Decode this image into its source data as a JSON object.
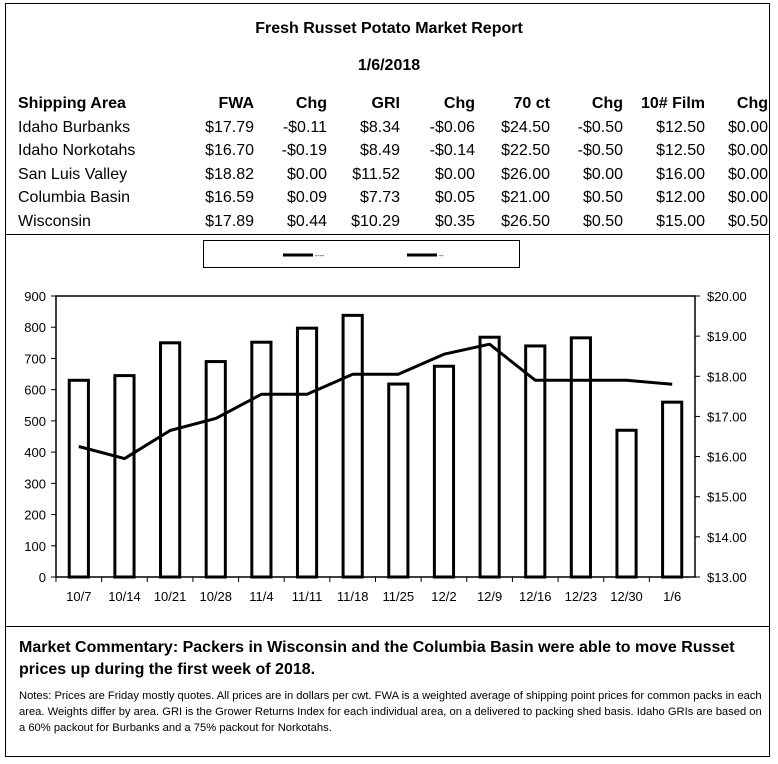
{
  "report": {
    "title": "Fresh Russet Potato Market Report",
    "date": "1/6/2018"
  },
  "table": {
    "headers": [
      "Shipping Area",
      "FWA",
      "Chg",
      "GRI",
      "Chg",
      "70 ct",
      "Chg",
      "10# Film",
      "Chg"
    ],
    "rows": [
      [
        "Idaho Burbanks",
        "$17.79",
        "-$0.11",
        "$8.34",
        "-$0.06",
        "$24.50",
        "-$0.50",
        "$12.50",
        "$0.00"
      ],
      [
        "Idaho Norkotahs",
        "$16.70",
        "-$0.19",
        "$8.49",
        "-$0.14",
        "$22.50",
        "-$0.50",
        "$12.50",
        "$0.00"
      ],
      [
        "San Luis Valley",
        "$18.82",
        "$0.00",
        "$11.52",
        "$0.00",
        "$26.00",
        "$0.00",
        "$16.00",
        "$0.00"
      ],
      [
        "Columbia Basin",
        "$16.59",
        "$0.09",
        "$7.73",
        "$0.05",
        "$21.00",
        "$0.50",
        "$12.00",
        "$0.00"
      ],
      [
        "Wisconsin",
        "$17.89",
        "$0.44",
        "$10.29",
        "$0.35",
        "$26.50",
        "$0.50",
        "$15.00",
        "$0.50"
      ]
    ]
  },
  "chart_data": {
    "type": "bar",
    "categories": [
      "10/7",
      "10/14",
      "10/21",
      "10/28",
      "11/4",
      "11/11",
      "11/18",
      "11/25",
      "12/2",
      "12/9",
      "12/16",
      "12/23",
      "12/30",
      "1/6"
    ],
    "series": [
      {
        "name": "----",
        "type": "bar",
        "axis": "left",
        "values": [
          630,
          645,
          750,
          690,
          752,
          797,
          838,
          618,
          675,
          768,
          740,
          766,
          470,
          560
        ]
      },
      {
        "name": "--",
        "type": "line",
        "axis": "right",
        "values": [
          16.25,
          15.95,
          16.65,
          16.95,
          17.55,
          17.55,
          18.05,
          18.05,
          18.55,
          18.8,
          17.9,
          17.9,
          17.9,
          17.8
        ]
      }
    ],
    "y_left": {
      "min": 0,
      "max": 900,
      "step": 100,
      "ticks": [
        "0",
        "100",
        "200",
        "300",
        "400",
        "500",
        "600",
        "700",
        "800",
        "900"
      ]
    },
    "y_right": {
      "min": 13,
      "max": 20,
      "step": 1,
      "ticks": [
        "$13.00",
        "$14.00",
        "$15.00",
        "$16.00",
        "$17.00",
        "$18.00",
        "$19.00",
        "$20.00"
      ]
    },
    "grid": false,
    "legend_position": "top-center"
  },
  "commentary": "Market Commentary: Packers in Wisconsin and the Columbia Basin were able to move Russet prices up during the first week of 2018.",
  "notes": "Notes: Prices are Friday mostly quotes. All prices are in dollars per cwt. FWA is a weighted average of shipping point prices for  common packs in each area. Weights differ by area. GRI is the Grower Returns Index for each individual area, on a delivered to packing shed basis. Idaho GRIs are based on a 60% packout for Burbanks and a 75% packout for Norkotahs.",
  "colors": {
    "line": "#000000",
    "bar_fill": "#ffffff",
    "bar_stroke": "#000000"
  }
}
